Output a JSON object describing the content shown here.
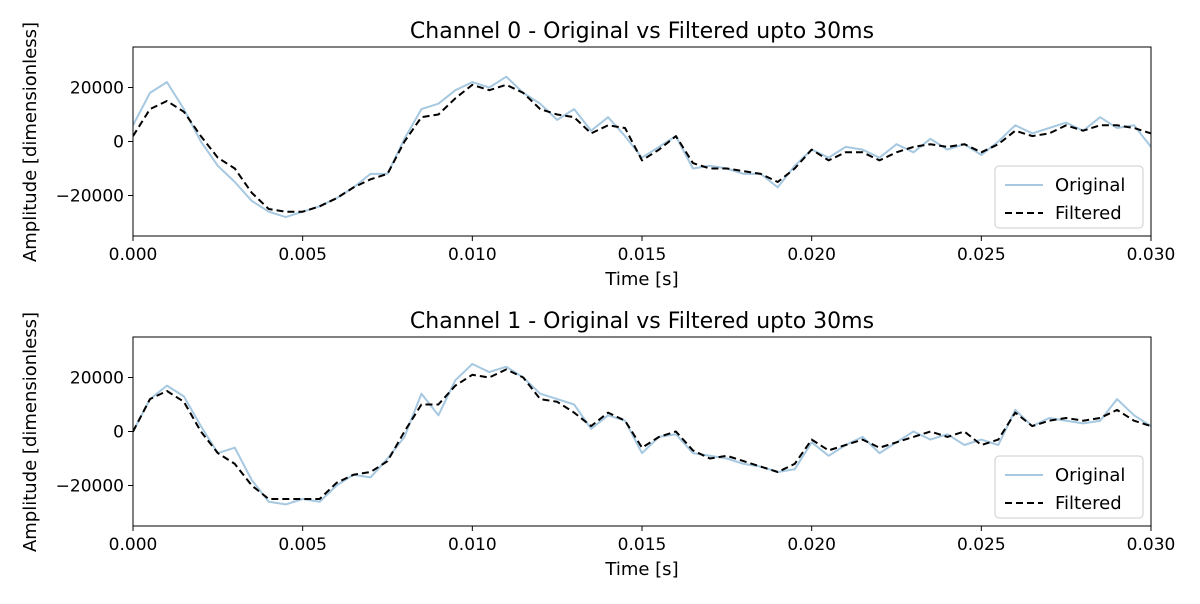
{
  "chart_data": [
    {
      "type": "line",
      "title": "Channel 0 - Original vs Filtered upto 30ms",
      "xlabel": "Time [s]",
      "ylabel": "Amplitude [dimensionless]",
      "xlim": [
        0,
        0.03
      ],
      "ylim": [
        -35000,
        35000
      ],
      "xticks": [
        "0.000",
        "0.005",
        "0.010",
        "0.015",
        "0.020",
        "0.025",
        "0.030"
      ],
      "yticks": [
        "−20000",
        "0",
        "20000"
      ],
      "grid": false,
      "legend_position": "lower right",
      "colors": {
        "original": "#a6c8e0",
        "filtered": "#000000"
      },
      "series": [
        {
          "name": "Original",
          "x": [
            0.0,
            0.0005,
            0.001,
            0.0015,
            0.002,
            0.0025,
            0.003,
            0.0035,
            0.004,
            0.0045,
            0.005,
            0.0055,
            0.006,
            0.0065,
            0.007,
            0.0075,
            0.008,
            0.0085,
            0.009,
            0.0095,
            0.01,
            0.0105,
            0.011,
            0.0115,
            0.012,
            0.0125,
            0.013,
            0.0135,
            0.014,
            0.0145,
            0.015,
            0.0155,
            0.016,
            0.0165,
            0.017,
            0.0175,
            0.018,
            0.0185,
            0.019,
            0.0195,
            0.02,
            0.0205,
            0.021,
            0.0215,
            0.022,
            0.0225,
            0.023,
            0.0235,
            0.024,
            0.0245,
            0.025,
            0.0255,
            0.026,
            0.0265,
            0.027,
            0.0275,
            0.028,
            0.0285,
            0.029,
            0.0295,
            0.03
          ],
          "values": [
            6000,
            18000,
            22000,
            12000,
            0,
            -9000,
            -15000,
            -22000,
            -26000,
            -28000,
            -26000,
            -24000,
            -21000,
            -17000,
            -12000,
            -12000,
            1000,
            12000,
            14000,
            19000,
            22000,
            20000,
            24000,
            18000,
            14000,
            8000,
            12000,
            4000,
            9000,
            2000,
            -6000,
            -2000,
            2000,
            -10000,
            -9000,
            -10000,
            -12000,
            -12000,
            -17000,
            -9000,
            -3000,
            -6000,
            -2000,
            -3000,
            -6000,
            -1000,
            -4000,
            1000,
            -3000,
            -1000,
            -5000,
            0,
            6000,
            3000,
            5000,
            7000,
            4000,
            9000,
            5000,
            6000,
            -2000
          ]
        },
        {
          "name": "Filtered",
          "x": [
            0.0,
            0.0005,
            0.001,
            0.0015,
            0.002,
            0.0025,
            0.003,
            0.0035,
            0.004,
            0.0045,
            0.005,
            0.0055,
            0.006,
            0.0065,
            0.007,
            0.0075,
            0.008,
            0.0085,
            0.009,
            0.0095,
            0.01,
            0.0105,
            0.011,
            0.0115,
            0.012,
            0.0125,
            0.013,
            0.0135,
            0.014,
            0.0145,
            0.015,
            0.0155,
            0.016,
            0.0165,
            0.017,
            0.0175,
            0.018,
            0.0185,
            0.019,
            0.0195,
            0.02,
            0.0205,
            0.021,
            0.0215,
            0.022,
            0.0225,
            0.023,
            0.0235,
            0.024,
            0.0245,
            0.025,
            0.0255,
            0.026,
            0.0265,
            0.027,
            0.0275,
            0.028,
            0.0285,
            0.029,
            0.0295,
            0.03
          ],
          "values": [
            2000,
            12000,
            15000,
            11000,
            2000,
            -6000,
            -10000,
            -19000,
            -25000,
            -26000,
            -26000,
            -24000,
            -21000,
            -17000,
            -14000,
            -12000,
            0,
            9000,
            10000,
            16000,
            21000,
            19000,
            21000,
            18000,
            12000,
            10000,
            9000,
            3000,
            6000,
            5000,
            -7000,
            -3000,
            2000,
            -8000,
            -10000,
            -10000,
            -11000,
            -12000,
            -15000,
            -10000,
            -3000,
            -7000,
            -4000,
            -4000,
            -7000,
            -4000,
            -2000,
            -1000,
            -2000,
            -1000,
            -4000,
            -1000,
            4000,
            2000,
            3000,
            6000,
            4000,
            6000,
            6000,
            5000,
            3000
          ]
        }
      ]
    },
    {
      "type": "line",
      "title": "Channel 1 - Original vs Filtered upto 30ms",
      "xlabel": "Time [s]",
      "ylabel": "Amplitude [dimensionless]",
      "xlim": [
        0,
        0.03
      ],
      "ylim": [
        -35000,
        35000
      ],
      "xticks": [
        "0.000",
        "0.005",
        "0.010",
        "0.015",
        "0.020",
        "0.025",
        "0.030"
      ],
      "yticks": [
        "−20000",
        "0",
        "20000"
      ],
      "grid": false,
      "legend_position": "lower right",
      "colors": {
        "original": "#a6c8e0",
        "filtered": "#000000"
      },
      "series": [
        {
          "name": "Original",
          "x": [
            0.0,
            0.0005,
            0.001,
            0.0015,
            0.002,
            0.0025,
            0.003,
            0.0035,
            0.004,
            0.0045,
            0.005,
            0.0055,
            0.006,
            0.0065,
            0.007,
            0.0075,
            0.008,
            0.0085,
            0.009,
            0.0095,
            0.01,
            0.0105,
            0.011,
            0.0115,
            0.012,
            0.0125,
            0.013,
            0.0135,
            0.014,
            0.0145,
            0.015,
            0.0155,
            0.016,
            0.0165,
            0.017,
            0.0175,
            0.018,
            0.0185,
            0.019,
            0.0195,
            0.02,
            0.0205,
            0.021,
            0.0215,
            0.022,
            0.0225,
            0.023,
            0.0235,
            0.024,
            0.0245,
            0.025,
            0.0255,
            0.026,
            0.0265,
            0.027,
            0.0275,
            0.028,
            0.0285,
            0.029,
            0.0295,
            0.03
          ],
          "values": [
            0,
            12000,
            17000,
            13000,
            2000,
            -8000,
            -6000,
            -18000,
            -26000,
            -27000,
            -25000,
            -26000,
            -20000,
            -16000,
            -17000,
            -10000,
            -2000,
            14000,
            6000,
            19000,
            25000,
            22000,
            24000,
            20000,
            14000,
            12000,
            10000,
            1000,
            6000,
            4000,
            -8000,
            -2000,
            -1000,
            -8000,
            -9000,
            -10000,
            -12000,
            -13000,
            -15000,
            -14000,
            -4000,
            -9000,
            -5000,
            -2000,
            -8000,
            -4000,
            0,
            -3000,
            -1000,
            -5000,
            -3000,
            -5000,
            8000,
            2000,
            5000,
            4000,
            3000,
            4000,
            12000,
            6000,
            2000
          ]
        },
        {
          "name": "Filtered",
          "x": [
            0.0,
            0.0005,
            0.001,
            0.0015,
            0.002,
            0.0025,
            0.003,
            0.0035,
            0.004,
            0.0045,
            0.005,
            0.0055,
            0.006,
            0.0065,
            0.007,
            0.0075,
            0.008,
            0.0085,
            0.009,
            0.0095,
            0.01,
            0.0105,
            0.011,
            0.0115,
            0.012,
            0.0125,
            0.013,
            0.0135,
            0.014,
            0.0145,
            0.015,
            0.0155,
            0.016,
            0.0165,
            0.017,
            0.0175,
            0.018,
            0.0185,
            0.019,
            0.0195,
            0.02,
            0.0205,
            0.021,
            0.0215,
            0.022,
            0.0225,
            0.023,
            0.0235,
            0.024,
            0.0245,
            0.025,
            0.0255,
            0.026,
            0.0265,
            0.027,
            0.0275,
            0.028,
            0.0285,
            0.029,
            0.0295,
            0.03
          ],
          "values": [
            0,
            12000,
            15000,
            11000,
            0,
            -8000,
            -12000,
            -20000,
            -25000,
            -25000,
            -25000,
            -25000,
            -19000,
            -16000,
            -15000,
            -11000,
            0,
            10000,
            10000,
            17000,
            21000,
            20000,
            23000,
            20000,
            12000,
            11000,
            7000,
            2000,
            7000,
            4000,
            -6000,
            -2000,
            0,
            -7000,
            -10000,
            -9000,
            -11000,
            -13000,
            -15000,
            -12000,
            -3000,
            -7000,
            -5000,
            -3000,
            -6000,
            -4000,
            -2000,
            0,
            -2000,
            0,
            -5000,
            -3000,
            7000,
            2000,
            4000,
            5000,
            4000,
            5000,
            8000,
            4000,
            2000
          ]
        }
      ]
    }
  ]
}
